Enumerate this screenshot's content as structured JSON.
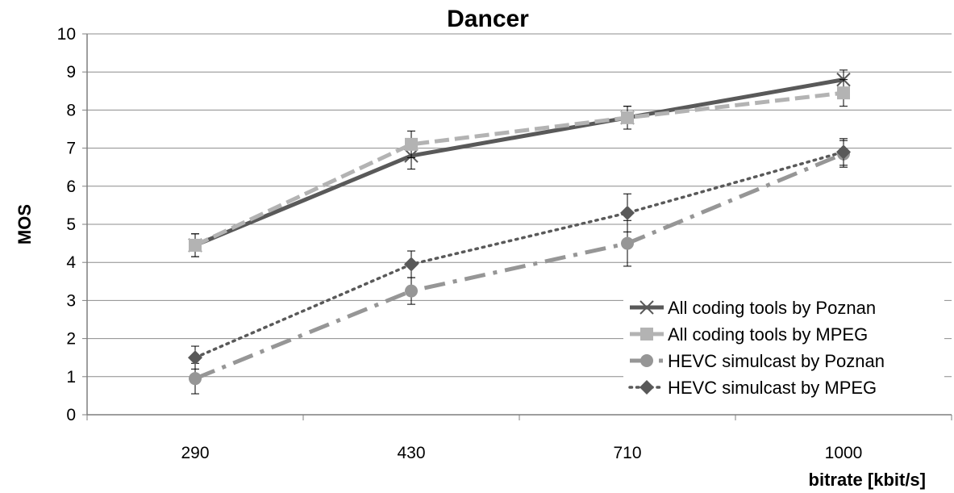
{
  "chart_data": {
    "type": "line",
    "title": "Dancer",
    "xlabel": "bitrate [kbit/s]",
    "ylabel": "MOS",
    "categories": [
      "290",
      "430",
      "710",
      "1000"
    ],
    "ylim": [
      0,
      10
    ],
    "yticks": [
      0,
      1,
      2,
      3,
      4,
      5,
      6,
      7,
      8,
      9,
      10
    ],
    "grid": true,
    "legend_position": "bottom-right",
    "series": [
      {
        "name": "All coding tools by Poznan",
        "values": [
          4.45,
          6.8,
          7.8,
          8.8
        ],
        "error": [
          0.3,
          0.35,
          0.3,
          0.25
        ],
        "color": "#595959",
        "line_style": "solid",
        "marker": "cross"
      },
      {
        "name": "All coding tools by MPEG",
        "values": [
          4.45,
          7.1,
          7.8,
          8.45
        ],
        "error": [
          0.3,
          0.35,
          0.3,
          0.35
        ],
        "color": "#b3b3b3",
        "line_style": "dashed",
        "marker": "square"
      },
      {
        "name": "HEVC simulcast by Poznan",
        "values": [
          0.95,
          3.25,
          4.5,
          6.85
        ],
        "error": [
          0.4,
          0.35,
          0.6,
          0.35
        ],
        "color": "#969696",
        "line_style": "dash-dot",
        "marker": "circle"
      },
      {
        "name": "HEVC simulcast by MPEG",
        "values": [
          1.5,
          3.95,
          5.3,
          6.9
        ],
        "error": [
          0.3,
          0.35,
          0.5,
          0.35
        ],
        "color": "#595959",
        "line_style": "dotted",
        "marker": "diamond"
      }
    ]
  }
}
